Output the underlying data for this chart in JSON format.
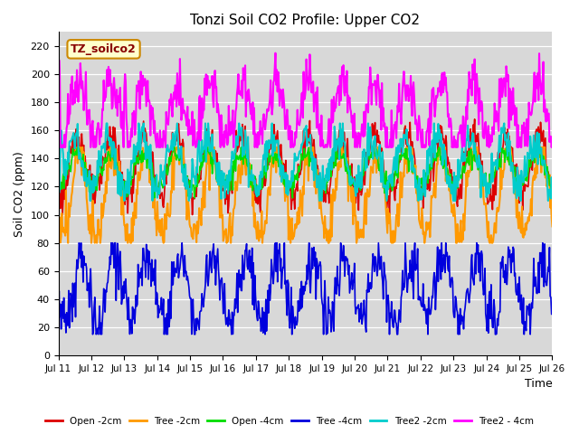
{
  "title": "Tonzi Soil CO2 Profile: Upper CO2",
  "ylabel": "Soil CO2 (ppm)",
  "xlabel": "Time",
  "ylim": [
    0,
    230
  ],
  "figure_bg": "#ffffff",
  "plot_bg": "#d8d8d8",
  "label_box": "TZ_soilco2",
  "xtick_labels": [
    "Jul 11",
    "Jul 12",
    "Jul 13",
    "Jul 14",
    "Jul 15",
    "Jul 16",
    "Jul 17",
    "Jul 18",
    "Jul 19",
    "Jul 20",
    "Jul 21",
    "Jul 22",
    "Jul 23",
    "Jul 24",
    "Jul 25",
    "Jul 26"
  ],
  "ytick_values": [
    0,
    20,
    40,
    60,
    80,
    100,
    120,
    140,
    160,
    180,
    200,
    220
  ],
  "series": [
    {
      "label": "Open -2cm",
      "color": "#dd0000"
    },
    {
      "label": "Tree -2cm",
      "color": "#ff9900"
    },
    {
      "label": "Open -4cm",
      "color": "#00dd00"
    },
    {
      "label": "Tree -4cm",
      "color": "#0000dd"
    },
    {
      "label": "Tree2 -2cm",
      "color": "#00cccc"
    },
    {
      "label": "Tree2 - 4cm",
      "color": "#ff00ff"
    }
  ]
}
